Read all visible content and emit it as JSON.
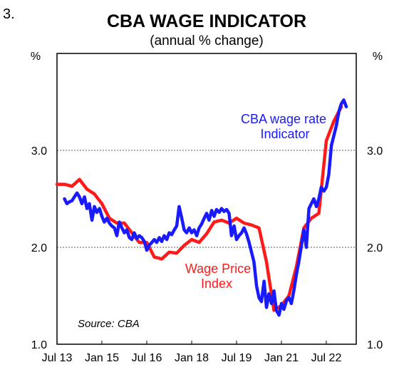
{
  "chart_number": "3.",
  "chart_data": {
    "type": "line",
    "title": "CBA WAGE INDICATOR",
    "subtitle": "(annual % change)",
    "left_axis_unit": "%",
    "right_axis_unit": "%",
    "ylim": [
      1.0,
      4.0
    ],
    "y_ticks": [
      "1.0",
      "2.0",
      "3.0"
    ],
    "y_tick_values": [
      1.0,
      2.0,
      3.0
    ],
    "grid": "horizontal dotted at 2.0 and 3.0",
    "x_ticks": [
      "Jul 13",
      "Jan 15",
      "Jul 16",
      "Jan 18",
      "Jul 19",
      "Jan 21",
      "Jul 22"
    ],
    "x_tick_values": [
      2013.5,
      2015.0,
      2016.5,
      2018.0,
      2019.5,
      2021.0,
      2022.5
    ],
    "xlim": [
      2013.5,
      2023.5
    ],
    "source": "Source: CBA",
    "series": [
      {
        "name": "CBA wage rate Indicator",
        "color": "#1a1aff",
        "x": [
          2013.75,
          2013.83,
          2013.92,
          2014.0,
          2014.08,
          2014.17,
          2014.25,
          2014.33,
          2014.42,
          2014.5,
          2014.58,
          2014.67,
          2014.75,
          2014.83,
          2014.92,
          2015.0,
          2015.08,
          2015.17,
          2015.25,
          2015.33,
          2015.42,
          2015.5,
          2015.58,
          2015.67,
          2015.75,
          2015.83,
          2015.92,
          2016.0,
          2016.08,
          2016.17,
          2016.25,
          2016.33,
          2016.42,
          2016.5,
          2016.58,
          2016.67,
          2016.75,
          2016.83,
          2016.92,
          2017.0,
          2017.08,
          2017.17,
          2017.25,
          2017.33,
          2017.42,
          2017.5,
          2017.58,
          2017.67,
          2017.75,
          2017.83,
          2017.92,
          2018.0,
          2018.08,
          2018.17,
          2018.25,
          2018.33,
          2018.42,
          2018.5,
          2018.58,
          2018.67,
          2018.75,
          2018.83,
          2018.92,
          2019.0,
          2019.08,
          2019.17,
          2019.25,
          2019.33,
          2019.42,
          2019.5,
          2019.58,
          2019.67,
          2019.75,
          2019.83,
          2019.92,
          2020.0,
          2020.08,
          2020.17,
          2020.25,
          2020.33,
          2020.42,
          2020.5,
          2020.58,
          2020.67,
          2020.75,
          2020.83,
          2020.92,
          2021.0,
          2021.08,
          2021.17,
          2021.25,
          2021.33,
          2021.42,
          2021.5,
          2021.58,
          2021.67,
          2021.75,
          2021.83,
          2021.92,
          2022.0,
          2022.08,
          2022.17,
          2022.25,
          2022.33,
          2022.42,
          2022.5,
          2022.58,
          2022.67,
          2022.75,
          2022.83,
          2022.92,
          2023.0,
          2023.08,
          2023.17
        ],
        "values": [
          2.5,
          2.45,
          2.47,
          2.48,
          2.52,
          2.56,
          2.52,
          2.45,
          2.52,
          2.4,
          2.45,
          2.28,
          2.42,
          2.36,
          2.4,
          2.32,
          2.26,
          2.3,
          2.25,
          2.22,
          2.2,
          2.12,
          2.26,
          2.2,
          2.15,
          2.18,
          2.1,
          2.08,
          2.15,
          2.09,
          2.12,
          2.1,
          2.06,
          1.97,
          2.02,
          2.05,
          2.08,
          2.05,
          2.1,
          2.06,
          2.12,
          2.08,
          2.15,
          2.13,
          2.18,
          2.22,
          2.42,
          2.3,
          2.18,
          2.15,
          2.2,
          2.15,
          2.18,
          2.12,
          2.2,
          2.24,
          2.3,
          2.35,
          2.28,
          2.38,
          2.32,
          2.39,
          2.36,
          2.4,
          2.37,
          2.39,
          2.35,
          2.12,
          2.22,
          2.08,
          2.12,
          2.15,
          2.2,
          2.14,
          2.05,
          1.95,
          1.85,
          1.6,
          1.48,
          1.44,
          1.65,
          1.38,
          1.52,
          1.42,
          1.55,
          1.35,
          1.3,
          1.42,
          1.36,
          1.45,
          1.48,
          1.42,
          1.56,
          1.72,
          1.85,
          2.02,
          2.18,
          2.0,
          2.4,
          2.45,
          2.5,
          2.42,
          2.5,
          2.62,
          2.58,
          2.62,
          2.75,
          3.05,
          3.15,
          3.25,
          3.4,
          3.48,
          3.52,
          3.45
        ]
      },
      {
        "name": "Wage Price Index",
        "color": "#ff1a1a",
        "x": [
          2013.5,
          2013.75,
          2014.0,
          2014.25,
          2014.5,
          2014.75,
          2015.0,
          2015.25,
          2015.5,
          2015.75,
          2016.0,
          2016.25,
          2016.5,
          2016.75,
          2017.0,
          2017.25,
          2017.5,
          2017.75,
          2018.0,
          2018.25,
          2018.5,
          2018.75,
          2019.0,
          2019.25,
          2019.5,
          2019.75,
          2020.0,
          2020.25,
          2020.5,
          2020.75,
          2021.0,
          2021.25,
          2021.5,
          2021.75,
          2022.0,
          2022.25,
          2022.5,
          2022.75,
          2023.0
        ],
        "values": [
          2.65,
          2.65,
          2.63,
          2.7,
          2.6,
          2.55,
          2.45,
          2.3,
          2.25,
          2.25,
          2.15,
          2.05,
          2.05,
          1.9,
          1.88,
          1.95,
          1.94,
          2.02,
          2.08,
          2.05,
          2.14,
          2.26,
          2.28,
          2.25,
          2.3,
          2.25,
          2.23,
          2.2,
          1.85,
          1.35,
          1.4,
          1.5,
          1.8,
          2.2,
          2.3,
          2.35,
          3.1,
          3.3,
          3.45
        ]
      }
    ],
    "annotations": {
      "cba_label_line1": "CBA wage rate",
      "cba_label_line2": "Indicator",
      "wpi_label_line1": "Wage Price",
      "wpi_label_line2": "Index"
    }
  }
}
